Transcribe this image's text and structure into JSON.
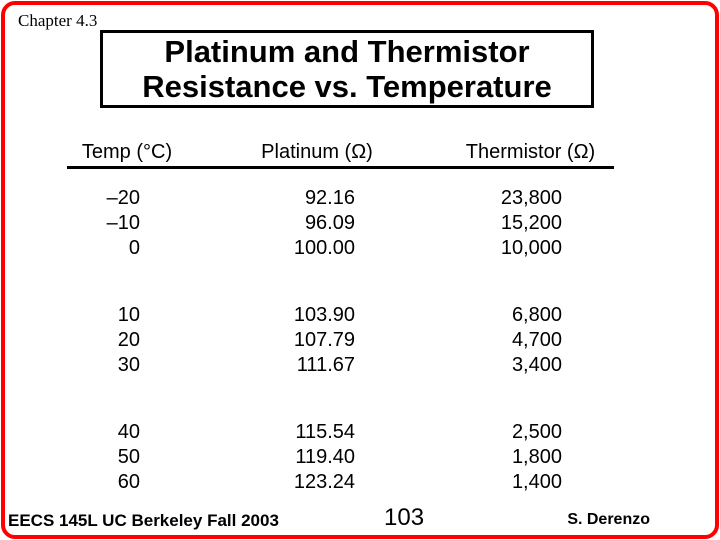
{
  "slide": {
    "chapter_label": "Chapter 4.3",
    "title_line1": "Platinum and Thermistor",
    "title_line2": "Resistance vs. Temperature",
    "frame_color": "#ff0000",
    "text_color": "#000000",
    "background_color": "#ffffff"
  },
  "table": {
    "headers": {
      "temp": "Temp (°C)",
      "platinum": "Platinum (Ω)",
      "thermistor": "Thermistor (Ω)"
    },
    "groups": [
      {
        "rows": [
          {
            "temp": "–20",
            "platinum": "92.16",
            "thermistor": "23,800"
          },
          {
            "temp": "–10",
            "platinum": "96.09",
            "thermistor": "15,200"
          },
          {
            "temp": "0",
            "platinum": "100.00",
            "thermistor": "10,000"
          }
        ]
      },
      {
        "rows": [
          {
            "temp": "10",
            "platinum": "103.90",
            "thermistor": "6,800"
          },
          {
            "temp": "20",
            "platinum": "107.79",
            "thermistor": "4,700"
          },
          {
            "temp": "30",
            "platinum": "111.67",
            "thermistor": "3,400"
          }
        ]
      },
      {
        "rows": [
          {
            "temp": "40",
            "platinum": "115.54",
            "thermistor": "2,500"
          },
          {
            "temp": "50",
            "platinum": "119.40",
            "thermistor": "1,800"
          },
          {
            "temp": "60",
            "platinum": "123.24",
            "thermistor": "1,400"
          }
        ]
      }
    ]
  },
  "footer": {
    "course": "EECS 145L UC Berkeley Fall 2003",
    "page_number": "103",
    "author": "S. Derenzo"
  }
}
